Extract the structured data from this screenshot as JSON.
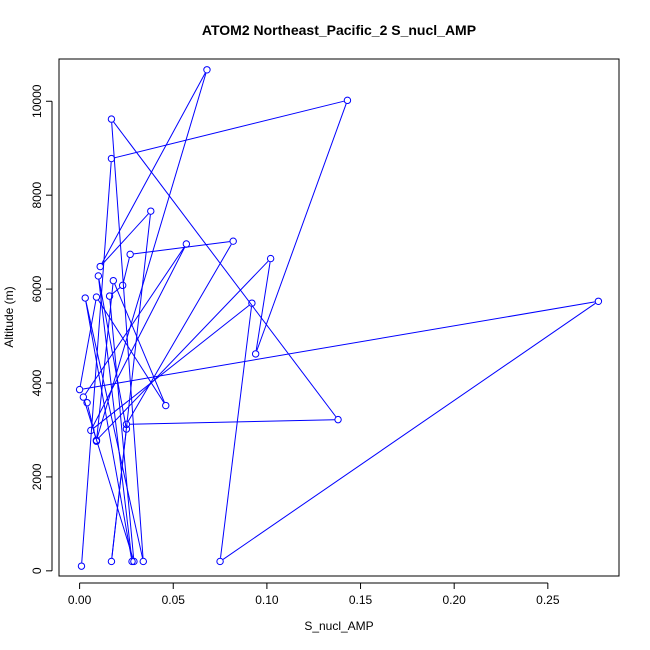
{
  "chart_data": {
    "type": "line",
    "title": "ATOM2 Northeast_Pacific_2 S_nucl_AMP",
    "xlabel": "S_nucl_AMP",
    "ylabel": "Altitude (m)",
    "xlim": [
      -0.011,
      0.288
    ],
    "ylim": [
      -110,
      10900
    ],
    "xticks": [
      0.0,
      0.05,
      0.1,
      0.15,
      0.2,
      0.25
    ],
    "xtick_labels": [
      "0.00",
      "0.05",
      "0.10",
      "0.15",
      "0.20",
      "0.25"
    ],
    "yticks": [
      0,
      2000,
      4000,
      6000,
      8000,
      10000
    ],
    "ytick_labels": [
      "0",
      "2000",
      "4000",
      "6000",
      "8000",
      "10000"
    ],
    "grid": false,
    "series": [
      {
        "color": "#0000ff",
        "markers": "open-circle",
        "points": [
          {
            "x": 0.001,
            "y": 100
          },
          {
            "x": 0.017,
            "y": 8780
          },
          {
            "x": 0.143,
            "y": 10020
          },
          {
            "x": 0.094,
            "y": 4620
          },
          {
            "x": 0.102,
            "y": 6650
          },
          {
            "x": 0.009,
            "y": 2780
          },
          {
            "x": 0.068,
            "y": 10670
          },
          {
            "x": 0.011,
            "y": 6480
          },
          {
            "x": 0.038,
            "y": 7660
          },
          {
            "x": 0.017,
            "y": 200
          },
          {
            "x": 0.025,
            "y": 3020
          },
          {
            "x": 0.01,
            "y": 6280
          },
          {
            "x": 0.028,
            "y": 200
          },
          {
            "x": 0.003,
            "y": 5810
          },
          {
            "x": 0.034,
            "y": 200
          },
          {
            "x": 0.017,
            "y": 9620
          },
          {
            "x": 0.138,
            "y": 3220
          },
          {
            "x": 0.025,
            "y": 3120
          },
          {
            "x": 0.082,
            "y": 7020
          },
          {
            "x": 0.027,
            "y": 6740
          },
          {
            "x": 0.023,
            "y": 6080
          },
          {
            "x": 0.016,
            "y": 5850
          },
          {
            "x": 0.029,
            "y": 200
          },
          {
            "x": 0.002,
            "y": 3700
          },
          {
            "x": 0.057,
            "y": 6960
          },
          {
            "x": 0.006,
            "y": 2990
          },
          {
            "x": 0.092,
            "y": 5700
          },
          {
            "x": 0.075,
            "y": 200
          },
          {
            "x": 0.277,
            "y": 5740
          },
          {
            "x": 0.0,
            "y": 3860
          },
          {
            "x": 0.009,
            "y": 5830
          },
          {
            "x": 0.046,
            "y": 3520
          },
          {
            "x": 0.018,
            "y": 6180
          },
          {
            "x": 0.009,
            "y": 2760
          },
          {
            "x": 0.004,
            "y": 3580
          }
        ]
      }
    ]
  }
}
